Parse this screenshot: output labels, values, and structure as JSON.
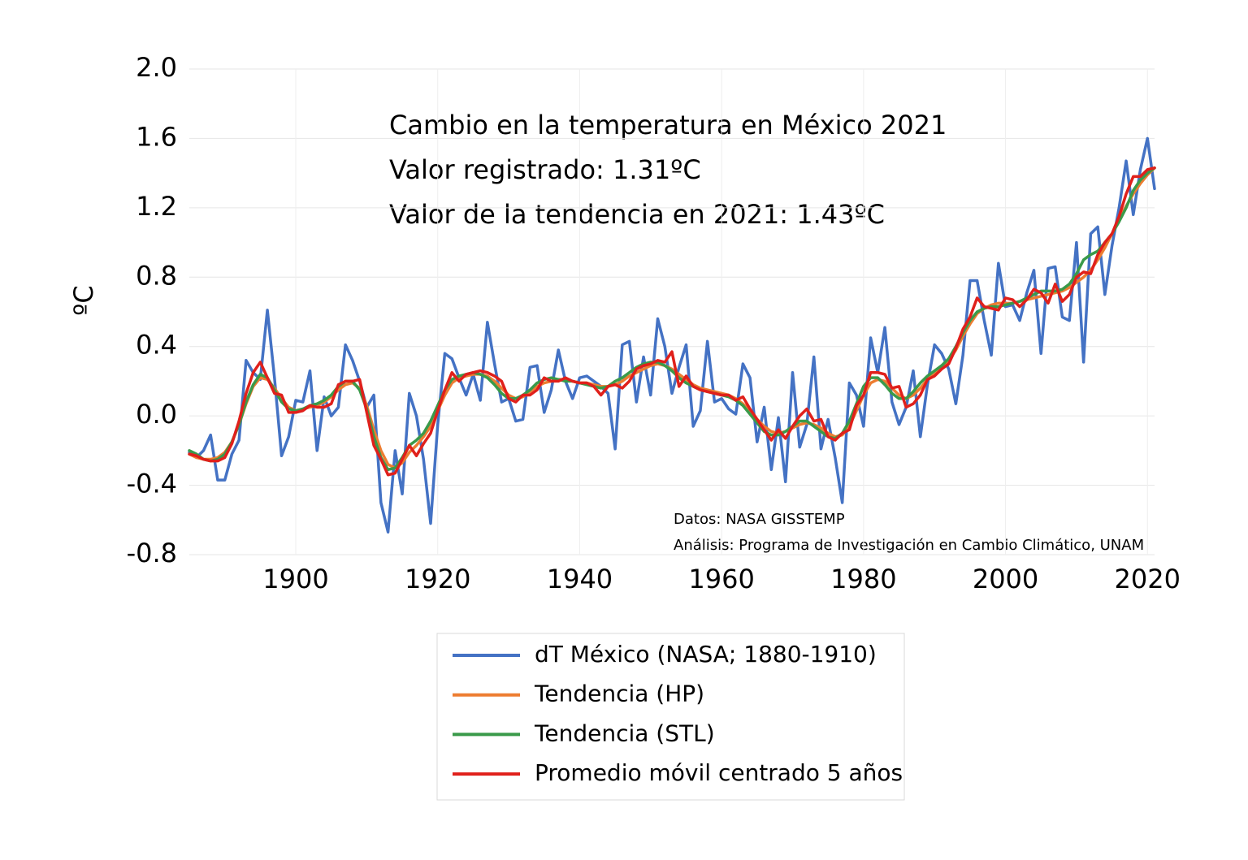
{
  "chart_data": {
    "type": "line",
    "y_label": "ºC",
    "annotations": [
      "Cambio en la temperatura en México 2021",
      "Valor registrado: 1.31ºC",
      "Valor de la tendencia en 2021: 1.43ºC"
    ],
    "source": [
      "Datos: NASA GISSTEMP",
      "Análisis: Programa de Investigación en Cambio Climático, UNAM"
    ],
    "x": [
      1885,
      1886,
      1887,
      1888,
      1889,
      1890,
      1891,
      1892,
      1893,
      1894,
      1895,
      1896,
      1897,
      1898,
      1899,
      1900,
      1901,
      1902,
      1903,
      1904,
      1905,
      1906,
      1907,
      1908,
      1909,
      1910,
      1911,
      1912,
      1913,
      1914,
      1915,
      1916,
      1917,
      1918,
      1919,
      1920,
      1921,
      1922,
      1923,
      1924,
      1925,
      1926,
      1927,
      1928,
      1929,
      1930,
      1931,
      1932,
      1933,
      1934,
      1935,
      1936,
      1937,
      1938,
      1939,
      1940,
      1941,
      1942,
      1943,
      1944,
      1945,
      1946,
      1947,
      1948,
      1949,
      1950,
      1951,
      1952,
      1953,
      1954,
      1955,
      1956,
      1957,
      1958,
      1959,
      1960,
      1961,
      1962,
      1963,
      1964,
      1965,
      1966,
      1967,
      1968,
      1969,
      1970,
      1971,
      1972,
      1973,
      1974,
      1975,
      1976,
      1977,
      1978,
      1979,
      1980,
      1981,
      1982,
      1983,
      1984,
      1985,
      1986,
      1987,
      1988,
      1989,
      1990,
      1991,
      1992,
      1993,
      1994,
      1995,
      1996,
      1997,
      1998,
      1999,
      2000,
      2001,
      2002,
      2003,
      2004,
      2005,
      2006,
      2007,
      2008,
      2009,
      2010,
      2011,
      2012,
      2013,
      2014,
      2015,
      2016,
      2017,
      2018,
      2019,
      2020,
      2021
    ],
    "series": [
      {
        "name": "dT México (NASA; 1880-1910)",
        "color": "#4472c4",
        "width": 3.5,
        "values": [
          -0.21,
          -0.24,
          -0.2,
          -0.11,
          -0.37,
          -0.37,
          -0.22,
          -0.14,
          0.32,
          0.25,
          0.21,
          0.61,
          0.22,
          -0.23,
          -0.12,
          0.09,
          0.08,
          0.26,
          -0.2,
          0.11,
          0.0,
          0.05,
          0.41,
          0.32,
          0.2,
          0.05,
          0.12,
          -0.5,
          -0.67,
          -0.2,
          -0.45,
          0.13,
          0.0,
          -0.25,
          -0.62,
          -0.05,
          0.36,
          0.33,
          0.22,
          0.12,
          0.24,
          0.09,
          0.54,
          0.3,
          0.08,
          0.1,
          -0.03,
          -0.02,
          0.28,
          0.29,
          0.02,
          0.15,
          0.38,
          0.2,
          0.1,
          0.22,
          0.23,
          0.2,
          0.17,
          0.13,
          -0.19,
          0.41,
          0.43,
          0.08,
          0.34,
          0.12,
          0.56,
          0.4,
          0.13,
          0.28,
          0.41,
          -0.06,
          0.03,
          0.43,
          0.08,
          0.1,
          0.04,
          0.01,
          0.3,
          0.22,
          -0.15,
          0.05,
          -0.31,
          -0.01,
          -0.38,
          0.25,
          -0.18,
          -0.05,
          0.34,
          -0.19,
          -0.02,
          -0.24,
          -0.5,
          0.19,
          0.12,
          -0.06,
          0.45,
          0.25,
          0.51,
          0.08,
          -0.05,
          0.05,
          0.26,
          -0.12,
          0.18,
          0.41,
          0.36,
          0.27,
          0.07,
          0.35,
          0.78,
          0.78,
          0.55,
          0.35,
          0.88,
          0.63,
          0.64,
          0.55,
          0.71,
          0.84,
          0.36,
          0.85,
          0.86,
          0.57,
          0.55,
          1.0,
          0.31,
          1.05,
          1.09,
          0.7,
          0.98,
          1.2,
          1.47,
          1.16,
          1.42,
          1.6,
          1.31
        ]
      },
      {
        "name": "Tendencia (HP)",
        "color": "#ed7d31",
        "width": 3.5,
        "values": [
          -0.22,
          -0.24,
          -0.25,
          -0.25,
          -0.24,
          -0.21,
          -0.15,
          -0.05,
          0.07,
          0.17,
          0.22,
          0.21,
          0.16,
          0.1,
          0.05,
          0.03,
          0.04,
          0.05,
          0.06,
          0.08,
          0.11,
          0.15,
          0.18,
          0.19,
          0.16,
          0.06,
          -0.08,
          -0.2,
          -0.28,
          -0.3,
          -0.27,
          -0.21,
          -0.17,
          -0.12,
          -0.06,
          0.03,
          0.12,
          0.19,
          0.22,
          0.23,
          0.24,
          0.24,
          0.23,
          0.2,
          0.16,
          0.12,
          0.1,
          0.11,
          0.14,
          0.17,
          0.19,
          0.2,
          0.21,
          0.21,
          0.2,
          0.19,
          0.19,
          0.18,
          0.17,
          0.17,
          0.18,
          0.2,
          0.23,
          0.25,
          0.27,
          0.29,
          0.3,
          0.29,
          0.27,
          0.24,
          0.21,
          0.18,
          0.16,
          0.15,
          0.14,
          0.13,
          0.12,
          0.1,
          0.07,
          0.03,
          -0.02,
          -0.06,
          -0.09,
          -0.1,
          -0.09,
          -0.07,
          -0.05,
          -0.04,
          -0.05,
          -0.07,
          -0.1,
          -0.12,
          -0.11,
          -0.06,
          0.03,
          0.12,
          0.19,
          0.21,
          0.2,
          0.16,
          0.12,
          0.1,
          0.12,
          0.16,
          0.21,
          0.25,
          0.28,
          0.32,
          0.38,
          0.46,
          0.53,
          0.59,
          0.62,
          0.64,
          0.65,
          0.65,
          0.65,
          0.66,
          0.67,
          0.68,
          0.69,
          0.7,
          0.71,
          0.72,
          0.74,
          0.77,
          0.8,
          0.84,
          0.9,
          0.97,
          1.05,
          1.13,
          1.21,
          1.28,
          1.34,
          1.39,
          1.43
        ]
      },
      {
        "name": "Tendencia (STL)",
        "color": "#3a9a4a",
        "width": 3.5,
        "values": [
          -0.2,
          -0.22,
          -0.25,
          -0.26,
          -0.25,
          -0.22,
          -0.15,
          -0.05,
          0.08,
          0.18,
          0.24,
          0.22,
          0.15,
          0.08,
          0.04,
          0.03,
          0.04,
          0.06,
          0.07,
          0.09,
          0.12,
          0.17,
          0.2,
          0.2,
          0.15,
          0.04,
          -0.12,
          -0.24,
          -0.31,
          -0.3,
          -0.24,
          -0.17,
          -0.14,
          -0.1,
          -0.03,
          0.06,
          0.15,
          0.21,
          0.23,
          0.24,
          0.25,
          0.24,
          0.22,
          0.18,
          0.13,
          0.1,
          0.1,
          0.12,
          0.15,
          0.19,
          0.21,
          0.22,
          0.21,
          0.2,
          0.2,
          0.19,
          0.18,
          0.17,
          0.16,
          0.17,
          0.2,
          0.22,
          0.25,
          0.28,
          0.3,
          0.31,
          0.31,
          0.29,
          0.26,
          0.22,
          0.19,
          0.17,
          0.15,
          0.14,
          0.13,
          0.12,
          0.11,
          0.09,
          0.06,
          0.01,
          -0.04,
          -0.09,
          -0.11,
          -0.11,
          -0.09,
          -0.06,
          -0.03,
          -0.03,
          -0.06,
          -0.09,
          -0.12,
          -0.13,
          -0.1,
          -0.03,
          0.07,
          0.17,
          0.22,
          0.22,
          0.18,
          0.13,
          0.1,
          0.1,
          0.14,
          0.19,
          0.23,
          0.26,
          0.29,
          0.33,
          0.4,
          0.48,
          0.55,
          0.6,
          0.62,
          0.63,
          0.63,
          0.64,
          0.65,
          0.66,
          0.68,
          0.7,
          0.72,
          0.72,
          0.72,
          0.73,
          0.76,
          0.82,
          0.9,
          0.93,
          0.95,
          1.0,
          1.05,
          1.12,
          1.2,
          1.3,
          1.36,
          1.4,
          1.43
        ]
      },
      {
        "name": "Promedio móvil centrado 5 años",
        "color": "#e0201b",
        "width": 3.5,
        "values": [
          -0.22,
          -0.23,
          -0.25,
          -0.26,
          -0.26,
          -0.24,
          -0.16,
          -0.03,
          0.13,
          0.25,
          0.31,
          0.22,
          0.13,
          0.12,
          0.02,
          0.02,
          0.03,
          0.06,
          0.05,
          0.05,
          0.07,
          0.18,
          0.2,
          0.2,
          0.21,
          0.02,
          -0.17,
          -0.25,
          -0.34,
          -0.33,
          -0.25,
          -0.17,
          -0.23,
          -0.16,
          -0.1,
          0.03,
          0.15,
          0.25,
          0.2,
          0.24,
          0.25,
          0.26,
          0.25,
          0.23,
          0.2,
          0.1,
          0.08,
          0.12,
          0.12,
          0.15,
          0.22,
          0.2,
          0.2,
          0.22,
          0.2,
          0.19,
          0.19,
          0.17,
          0.12,
          0.17,
          0.18,
          0.16,
          0.2,
          0.27,
          0.29,
          0.3,
          0.32,
          0.31,
          0.37,
          0.17,
          0.23,
          0.17,
          0.15,
          0.14,
          0.13,
          0.12,
          0.12,
          0.09,
          0.11,
          0.04,
          -0.02,
          -0.08,
          -0.14,
          -0.08,
          -0.13,
          -0.06,
          0.0,
          0.04,
          -0.03,
          -0.02,
          -0.12,
          -0.14,
          -0.1,
          -0.08,
          0.06,
          0.12,
          0.25,
          0.25,
          0.24,
          0.16,
          0.17,
          0.05,
          0.07,
          0.12,
          0.21,
          0.23,
          0.27,
          0.3,
          0.39,
          0.5,
          0.57,
          0.68,
          0.63,
          0.62,
          0.61,
          0.68,
          0.67,
          0.63,
          0.67,
          0.73,
          0.71,
          0.65,
          0.76,
          0.66,
          0.7,
          0.8,
          0.83,
          0.82,
          0.93,
          1.0,
          1.05,
          1.15,
          1.28,
          1.38,
          1.38,
          1.42,
          1.43
        ]
      }
    ],
    "xlim": [
      1885,
      2021
    ],
    "xticks": [
      1900,
      1920,
      1940,
      1960,
      1980,
      2000,
      2020
    ],
    "ylim": [
      -0.8,
      2.0
    ],
    "yticks": [
      -0.8,
      -0.4,
      {
        "value": 0,
        "label": "0.0"
      },
      0.4,
      0.8,
      1.2,
      1.6,
      {
        "value": 2,
        "label": "2.0"
      }
    ],
    "grid": true,
    "legend": "bottom"
  }
}
